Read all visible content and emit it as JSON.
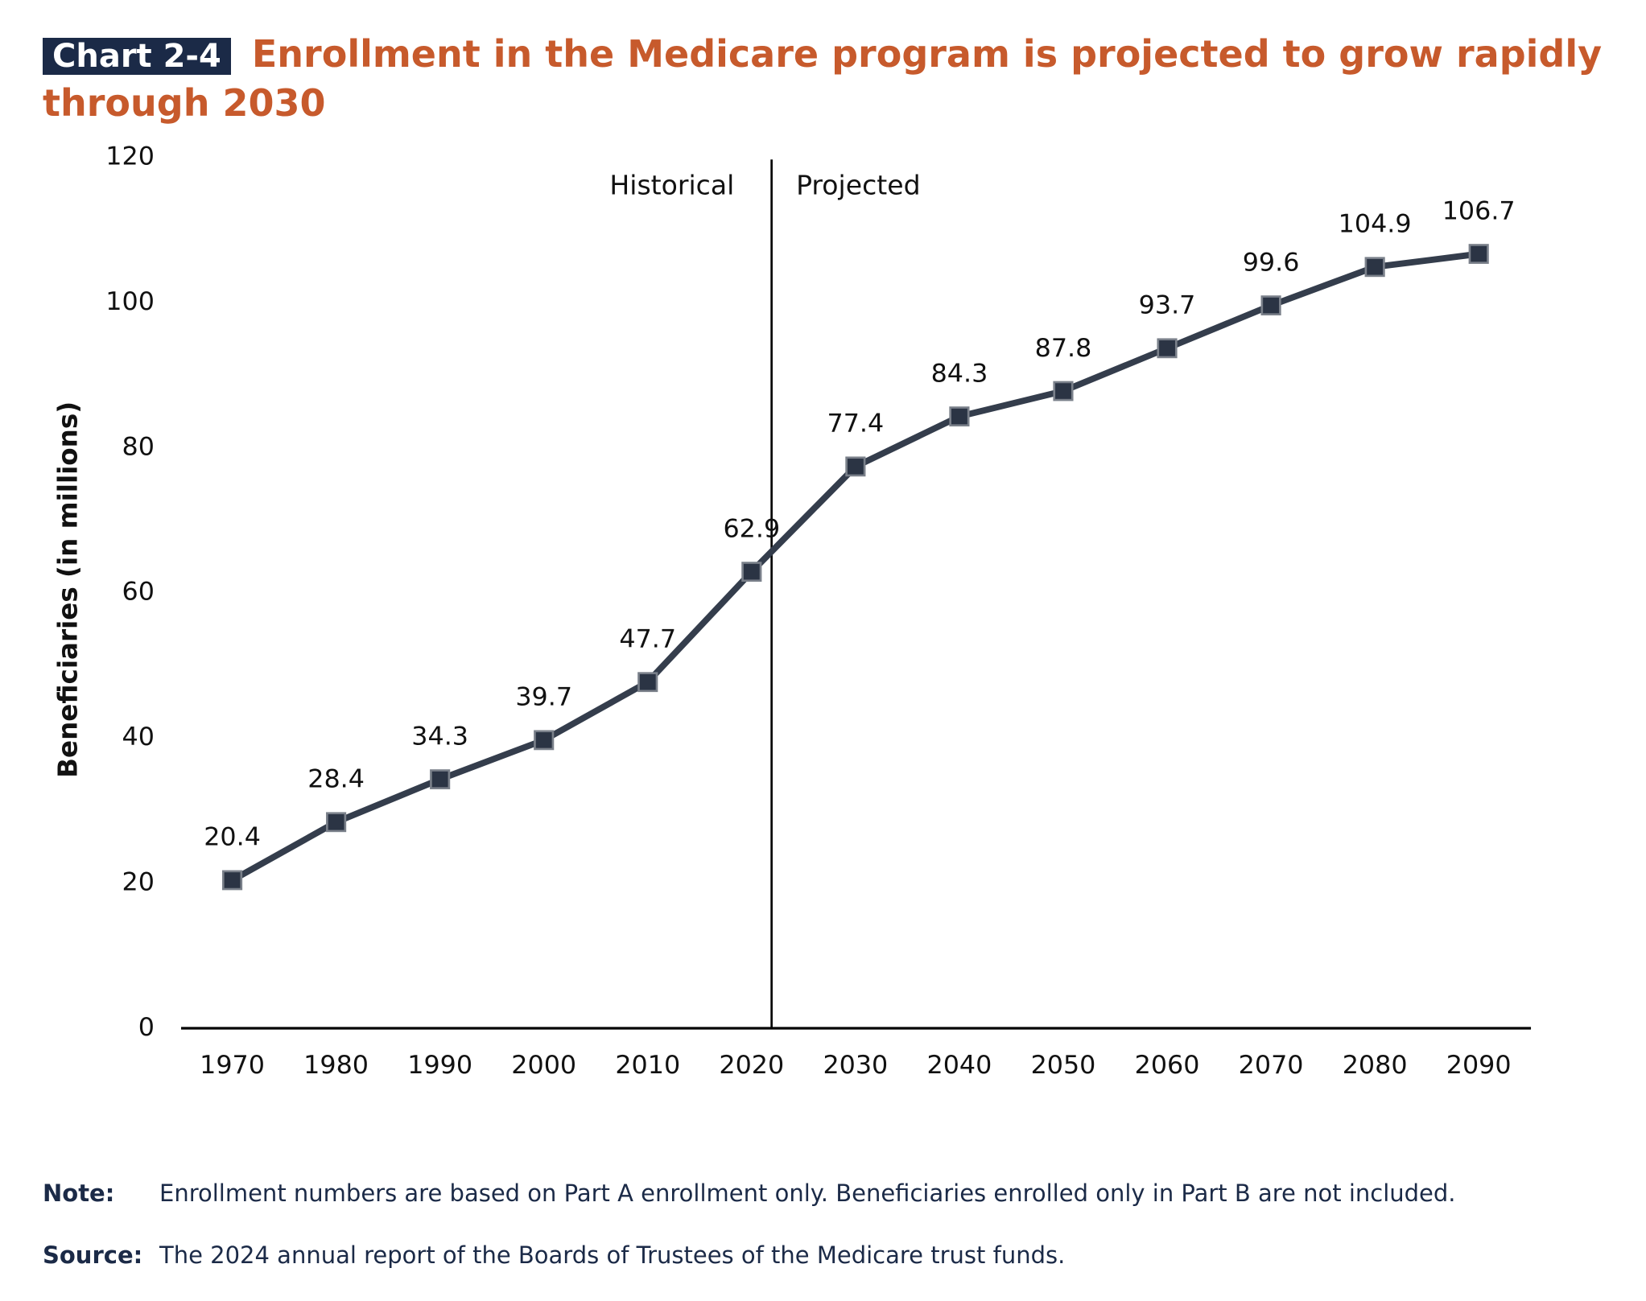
{
  "chart_data": {
    "type": "line",
    "chart_label": "Chart 2-4",
    "title": "Enrollment in the Medicare program is projected to grow rapidly through 2030",
    "y_label": "Beneficiaries (in millions)",
    "categories": [
      "1970",
      "1980",
      "1990",
      "2000",
      "2010",
      "2020",
      "2030",
      "2040",
      "2050",
      "2060",
      "2070",
      "2080",
      "2090"
    ],
    "series": [
      {
        "name": "Beneficiaries",
        "color": "#343d4c",
        "values": [
          20.4,
          28.4,
          34.3,
          39.7,
          47.7,
          62.9,
          77.4,
          84.3,
          87.8,
          93.7,
          99.6,
          104.9,
          106.7
        ]
      }
    ],
    "ylim": [
      0,
      120
    ],
    "yticks": [
      0,
      20,
      40,
      60,
      80,
      100,
      120
    ],
    "grid": false,
    "annotations": [
      "Historical",
      "Projected"
    ],
    "note_label": "Note:",
    "note": "Enrollment numbers are based on Part A enrollment only. Beneficiaries enrolled only in Part B are not included.",
    "source_label": "Source:",
    "source": "The 2024 annual report of the Boards of Trustees of the Medicare trust funds."
  }
}
